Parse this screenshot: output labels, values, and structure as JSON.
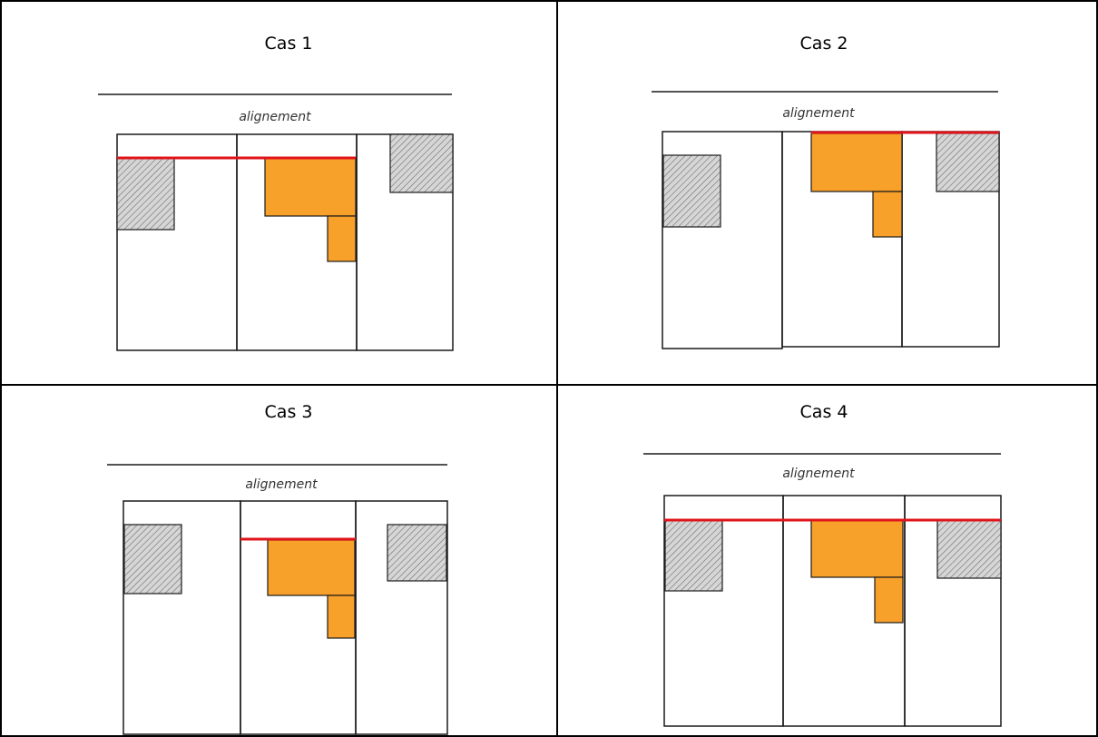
{
  "cases": [
    {
      "title": "Cas 1",
      "alignment_label": "alignement"
    },
    {
      "title": "Cas 2",
      "alignment_label": "alignement"
    },
    {
      "title": "Cas 3",
      "alignment_label": "alignement"
    },
    {
      "title": "Cas 4",
      "alignment_label": "alignement"
    }
  ],
  "colors": {
    "building": "#f7a02a",
    "alignment_line": "#e0141b",
    "hatch_fill": "#d6d6d6",
    "outline": "#1a1a1a"
  }
}
